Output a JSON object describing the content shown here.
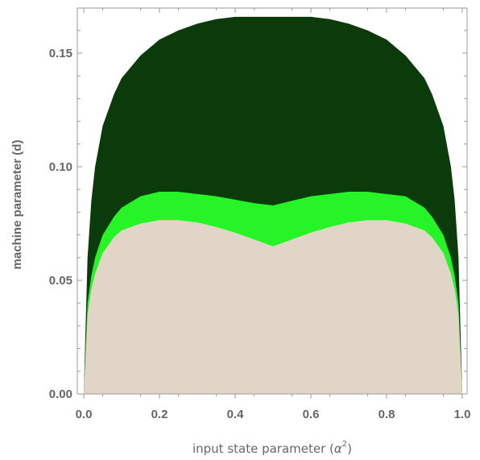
{
  "chart_data": {
    "type": "area",
    "xlabel_main": "input state parameter (",
    "xlabel_symbol": "α",
    "xlabel_sup": "2",
    "xlabel_tail": ")",
    "ylabel": "machine parameter (d)",
    "xlim": [
      0.0,
      1.0
    ],
    "ylim": [
      0.0,
      0.17
    ],
    "x_ticks": [
      "0.0",
      "0.2",
      "0.4",
      "0.6",
      "0.8",
      "1.0"
    ],
    "y_ticks": [
      "0.00",
      "0.05",
      "0.10",
      "0.15"
    ],
    "grid": false,
    "series": [
      {
        "color": "#0b3a0b",
        "x": [
          0.0,
          0.01,
          0.02,
          0.03,
          0.05,
          0.08,
          0.1,
          0.15,
          0.2,
          0.25,
          0.3,
          0.35,
          0.4,
          0.45,
          0.5,
          0.55,
          0.6,
          0.65,
          0.7,
          0.75,
          0.8,
          0.85,
          0.9,
          0.92,
          0.95,
          0.97,
          0.98,
          0.99,
          1.0
        ],
        "y": [
          0.0,
          0.06,
          0.085,
          0.1,
          0.118,
          0.132,
          0.139,
          0.149,
          0.156,
          0.16,
          0.163,
          0.165,
          0.166,
          0.166,
          0.166,
          0.166,
          0.166,
          0.165,
          0.163,
          0.16,
          0.156,
          0.149,
          0.139,
          0.132,
          0.118,
          0.1,
          0.085,
          0.06,
          0.0
        ]
      },
      {
        "color": "#27f427",
        "x": [
          0.0,
          0.01,
          0.02,
          0.03,
          0.05,
          0.08,
          0.1,
          0.15,
          0.2,
          0.25,
          0.3,
          0.35,
          0.4,
          0.45,
          0.5,
          0.55,
          0.6,
          0.65,
          0.7,
          0.75,
          0.8,
          0.85,
          0.9,
          0.92,
          0.95,
          0.97,
          0.98,
          0.99,
          1.0
        ],
        "y": [
          0.0,
          0.04,
          0.052,
          0.06,
          0.07,
          0.078,
          0.082,
          0.087,
          0.089,
          0.089,
          0.088,
          0.087,
          0.0855,
          0.084,
          0.083,
          0.085,
          0.087,
          0.088,
          0.089,
          0.089,
          0.088,
          0.087,
          0.082,
          0.078,
          0.07,
          0.06,
          0.052,
          0.04,
          0.0
        ]
      },
      {
        "color": "#e0d5c6",
        "x": [
          0.0,
          0.01,
          0.02,
          0.03,
          0.05,
          0.08,
          0.1,
          0.15,
          0.2,
          0.25,
          0.3,
          0.35,
          0.4,
          0.45,
          0.5,
          0.55,
          0.6,
          0.65,
          0.7,
          0.75,
          0.8,
          0.85,
          0.9,
          0.92,
          0.95,
          0.97,
          0.98,
          0.99,
          1.0
        ],
        "y": [
          0.0,
          0.035,
          0.046,
          0.053,
          0.062,
          0.069,
          0.072,
          0.075,
          0.0765,
          0.0765,
          0.0755,
          0.0735,
          0.071,
          0.068,
          0.065,
          0.068,
          0.071,
          0.0735,
          0.0755,
          0.0765,
          0.0765,
          0.075,
          0.072,
          0.069,
          0.062,
          0.053,
          0.046,
          0.035,
          0.0
        ]
      }
    ]
  }
}
